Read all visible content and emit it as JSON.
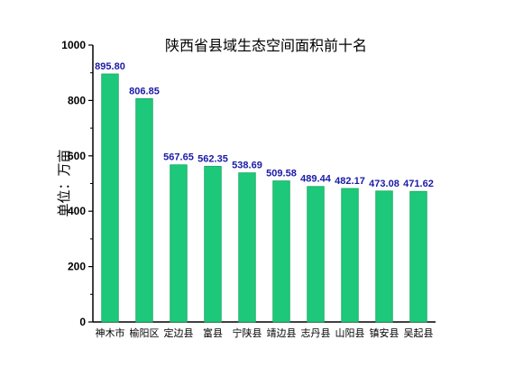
{
  "colors": {
    "bar": "#1ec87a",
    "bar_stroke": "#15a862",
    "data_label": "#1a1aa8",
    "axis": "#000000"
  },
  "chart_data": {
    "type": "bar",
    "title": "陕西省县域生态空间面积前十名",
    "xlabel": "",
    "ylabel": "单位：万亩",
    "categories": [
      "神木市",
      "榆阳区",
      "定边县",
      "富县",
      "宁陕县",
      "靖边县",
      "志丹县",
      "山阳县",
      "镇安县",
      "吴起县"
    ],
    "values": [
      895.8,
      806.85,
      567.65,
      562.35,
      538.69,
      509.58,
      489.44,
      482.17,
      473.08,
      471.62
    ],
    "data_labels": [
      "895.80",
      "806.85",
      "567.65",
      "562.35",
      "538.69",
      "509.58",
      "489.44",
      "482.17",
      "473.08",
      "471.62"
    ],
    "ylim": [
      0,
      1000
    ],
    "yticks": [
      "0",
      "200",
      "400",
      "600",
      "800",
      "1000"
    ],
    "grid": false,
    "legend": "none"
  }
}
